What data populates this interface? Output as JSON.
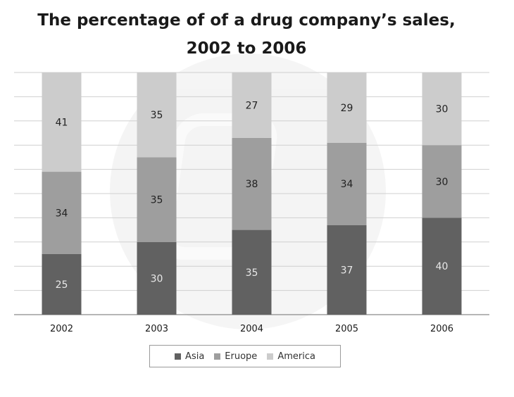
{
  "chart_data": {
    "type": "bar",
    "stacked": true,
    "title": [
      "The percentage of of a drug company’s sales,",
      "2002 to 2006"
    ],
    "categories": [
      "2002",
      "2003",
      "2004",
      "2005",
      "2006"
    ],
    "series": [
      {
        "name": "Asia",
        "values": [
          25,
          30,
          35,
          37,
          40
        ],
        "color": "#616161",
        "label_color": "#e8e8e8"
      },
      {
        "name": "Eruope",
        "values": [
          34,
          35,
          38,
          34,
          30
        ],
        "color": "#9e9e9e",
        "label_color": "#222222"
      },
      {
        "name": "America",
        "values": [
          41,
          35,
          27,
          29,
          30
        ],
        "color": "#cccccc",
        "label_color": "#222222"
      }
    ],
    "ylim": [
      0,
      100
    ],
    "grid": true,
    "legend_position": "bottom",
    "xlabel": "",
    "ylabel": ""
  }
}
